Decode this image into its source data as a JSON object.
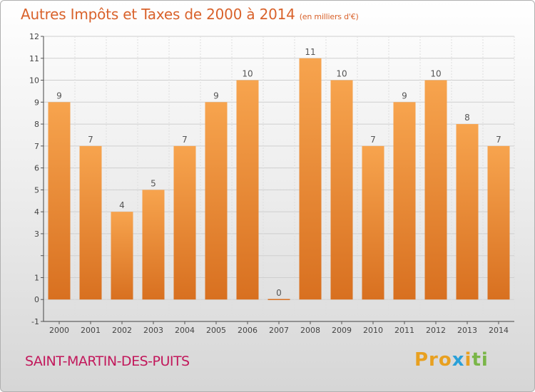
{
  "header": {
    "title": "Autres Impôts et Taxes de 2000 à 2014",
    "unit": "(en milliers d'€)"
  },
  "footer": {
    "commune": "SAINT-MARTIN-DES-PUITS",
    "logo_parts": [
      "Pro",
      "x",
      "i",
      "ti"
    ]
  },
  "colors": {
    "bar_light": "#f7a44e",
    "bar_dark": "#d87020",
    "title": "#d9622b",
    "commune": "#c2185b"
  },
  "chart_data": {
    "type": "bar",
    "title": "Autres Impôts et Taxes de 2000 à 2014",
    "subtitle": "(en milliers d'€)",
    "categories": [
      "2000",
      "2001",
      "2002",
      "2003",
      "2004",
      "2005",
      "2006",
      "2007",
      "2008",
      "2009",
      "2010",
      "2011",
      "2012",
      "2013",
      "2014"
    ],
    "values": [
      9,
      7,
      4,
      5,
      7,
      9,
      10,
      0,
      11,
      10,
      7,
      9,
      10,
      8,
      7
    ],
    "data_labels": [
      "9",
      "7",
      "4",
      "5",
      "7",
      "9",
      "10",
      "0",
      "11",
      "10",
      "7",
      "9",
      "10",
      "8",
      "7"
    ],
    "y_ticks": [
      -1,
      0,
      1,
      2,
      3,
      4,
      5,
      6,
      7,
      8,
      9,
      10,
      11,
      12
    ],
    "y_tick_labels": [
      "-1",
      "0",
      "1",
      "",
      "3",
      "4",
      "5",
      "6",
      "7",
      "8",
      "9",
      "10",
      "11",
      "12"
    ],
    "ylim": [
      -1,
      12
    ],
    "grid": true,
    "legend": "none"
  }
}
